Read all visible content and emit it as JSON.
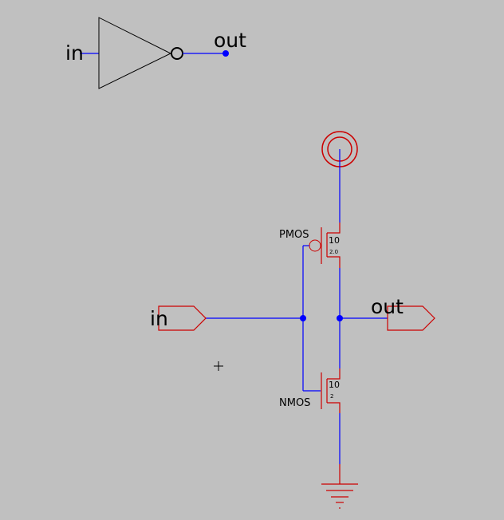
{
  "colors": {
    "background": "#c0c0c0",
    "wire": "#0000ff",
    "device": "#cc0000",
    "symbol": "#000000"
  },
  "inverter_symbol": {
    "input_label": "in",
    "output_label": "out"
  },
  "schematic": {
    "input_pin_label": "in",
    "output_pin_label": "out",
    "pmos": {
      "label": "PMOS",
      "width": "10",
      "length": "2.0"
    },
    "nmos": {
      "label": "NMOS",
      "width": "10",
      "length": "2"
    }
  }
}
